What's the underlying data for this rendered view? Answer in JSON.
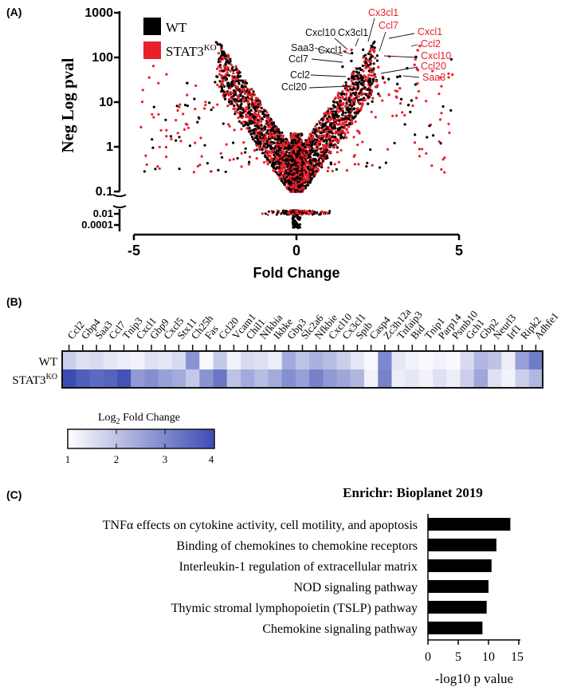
{
  "panel_labels": {
    "a": "(A)",
    "b": "(B)",
    "c": "(C)"
  },
  "colors": {
    "wt": "#000000",
    "ko": "#e8202a",
    "heat_low": "#ffffff",
    "heat_high": "#3d4cb5"
  },
  "chart_data": [
    {
      "type": "scatter",
      "panel": "A",
      "title": "",
      "xlabel": "Fold Change",
      "ylabel": "Neg Log pval",
      "xlim": [
        -5,
        5
      ],
      "x_ticks": [
        "-5",
        "0",
        "5"
      ],
      "y_ticks": [
        "1000",
        "100",
        "10",
        "1",
        "0.1"
      ],
      "y_ticks_low": [
        "0.01",
        "0.0001"
      ],
      "y_scale": "log",
      "legend": {
        "placement": "top-left",
        "wt": "WT",
        "ko_main": "STAT3",
        "ko_sup": "KO"
      },
      "labels_wt": [
        {
          "text": "Cxcl10",
          "x": 1.55,
          "y": 130
        },
        {
          "text": "Cx3cl1",
          "x": 1.65,
          "y": 115
        },
        {
          "text": "Saa3",
          "x": 1.45,
          "y": 80
        },
        {
          "text": "Cxcl1",
          "x": 1.5,
          "y": 70
        },
        {
          "text": "Ccl7",
          "x": 1.35,
          "y": 55
        },
        {
          "text": "Ccl2",
          "x": 1.6,
          "y": 27
        },
        {
          "text": "Ccl20",
          "x": 1.7,
          "y": 17
        }
      ],
      "labels_ko": [
        {
          "text": "Cx3cl1",
          "x": 2.0,
          "y": 170
        },
        {
          "text": "Ccl7",
          "x": 2.1,
          "y": 135
        },
        {
          "text": "Cxcl1",
          "x": 2.8,
          "y": 130
        },
        {
          "text": "Ccl2",
          "x": 2.6,
          "y": 75
        },
        {
          "text": "Cxcl10",
          "x": 2.2,
          "y": 100
        },
        {
          "text": "Ccl20",
          "x": 2.3,
          "y": 40
        },
        {
          "text": "Saa3",
          "x": 2.4,
          "y": 30
        }
      ]
    },
    {
      "type": "heatmap",
      "panel": "B",
      "genes": [
        "Ccl2",
        "Gbp4",
        "Saa3",
        "Ccl7",
        "Tnip3",
        "Cxcl1",
        "Gbp9",
        "Cxcl5",
        "Stx11",
        "Ch25h",
        "Fas",
        "Ccl20",
        "Vcam1",
        "Chil1",
        "Nfkbia",
        "Ikbke",
        "Gbp3",
        "Slc2a6",
        "Nfkbie",
        "Cxcl10",
        "Cx3cl1",
        "Spib",
        "Casp4",
        "Zc3h12a",
        "Tnfaip3",
        "Bid",
        "Tnip1",
        "Parp14",
        "Psmb10",
        "Gch1",
        "Gbp2",
        "Neurl3",
        "Irf1",
        "Ripk2",
        "Adhfe1"
      ],
      "rows": [
        {
          "name": "WT",
          "name_sup": "",
          "values": [
            1.8,
            1.5,
            1.6,
            1.4,
            1.3,
            1.2,
            1.5,
            1.4,
            1.6,
            2.8,
            1.1,
            1.9,
            1.2,
            1.6,
            1.5,
            1.3,
            2.4,
            2.0,
            2.3,
            2.1,
            1.8,
            1.4,
            1.1,
            3.0,
            1.4,
            1.2,
            1.1,
            1.2,
            1.1,
            1.6,
            2.2,
            2.0,
            1.3,
            2.6,
            3.2
          ]
        },
        {
          "name": "STAT3",
          "name_sup": "KO",
          "values": [
            4.0,
            3.7,
            3.5,
            3.6,
            3.9,
            2.7,
            2.9,
            2.6,
            2.4,
            1.9,
            2.8,
            3.3,
            2.0,
            2.4,
            2.1,
            2.4,
            2.9,
            2.6,
            3.1,
            2.7,
            2.5,
            2.2,
            1.2,
            3.1,
            1.3,
            1.4,
            1.2,
            1.5,
            1.3,
            1.8,
            2.5,
            1.5,
            1.2,
            1.8,
            2.2
          ]
        }
      ],
      "colorbar": {
        "label_main": "Log",
        "label_sub": "2",
        "label_rest": " Fold Change",
        "ticks": [
          "1",
          "2",
          "3",
          "4"
        ],
        "min": 1,
        "max": 4
      }
    },
    {
      "type": "bar",
      "panel": "C",
      "orientation": "horizontal",
      "title": "Enrichr: Bioplanet 2019",
      "xlabel": "-log10 p value",
      "xlim": [
        0,
        15
      ],
      "x_ticks": [
        "0",
        "5",
        "10",
        "15"
      ],
      "categories": [
        "TNFα effects on cytokine activity, cell motility, and apoptosis",
        "Binding of chemokines to chemokine receptors",
        "Interleukin-1 regulation of extracellular matrix",
        "NOD signaling pathway",
        "Thymic stromal lymphopoietin (TSLP) pathway",
        "Chemokine signaling pathway"
      ],
      "values": [
        13.6,
        11.3,
        10.5,
        10.0,
        9.7,
        9.0
      ]
    }
  ]
}
